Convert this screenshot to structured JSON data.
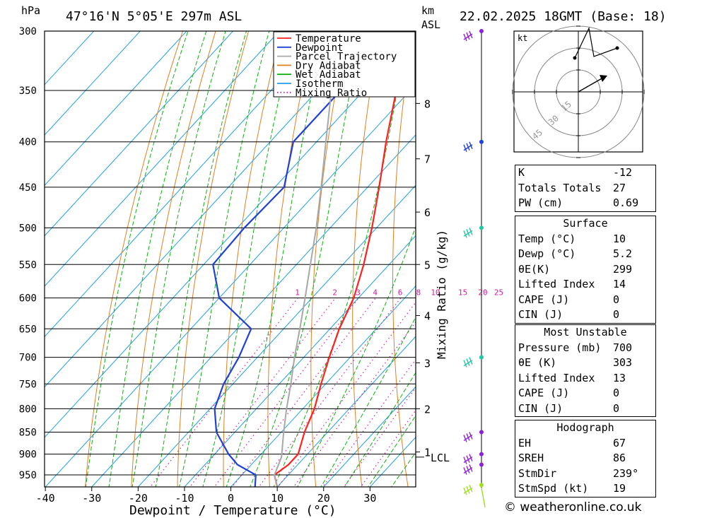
{
  "header": {
    "units_left": "hPa",
    "location": "47°16'N  5°05'E  297m  ASL",
    "units_km": "km",
    "units_asl": "ASL",
    "datetime": "22.02.2025  18GMT  (Base: 18)"
  },
  "chart_data": {
    "type": "line",
    "title": "47°16'N  5°05'E  297m  ASL",
    "xlabel": "Dewpoint / Temperature (°C)",
    "ylabel": "hPa",
    "right_axis_label": "Mixing Ratio (g/kg)",
    "xlim": [
      -40,
      40
    ],
    "ylim": [
      980,
      300
    ],
    "pressure_ticks": [
      300,
      350,
      400,
      450,
      500,
      550,
      600,
      650,
      700,
      750,
      800,
      850,
      900,
      950
    ],
    "temp_ticks": [
      -40,
      -30,
      -20,
      -10,
      0,
      10,
      20,
      30
    ],
    "km_ticks": [
      {
        "label": "1",
        "p": 895
      },
      {
        "label": "2",
        "p": 800
      },
      {
        "label": "3",
        "p": 710
      },
      {
        "label": "4",
        "p": 628
      },
      {
        "label": "5",
        "p": 550
      },
      {
        "label": "6",
        "p": 480
      },
      {
        "label": "7",
        "p": 418
      },
      {
        "label": "8",
        "p": 362
      }
    ],
    "lcl": {
      "label": "LCL",
      "p": 907
    },
    "mixing_ratio_labels": [
      "1",
      "2",
      "3",
      "4",
      "6",
      "8",
      "10",
      "15",
      "20",
      "25"
    ],
    "mixing_ratio_values": [
      1,
      2,
      3,
      4,
      6,
      8,
      10,
      15,
      20,
      25
    ],
    "mixing_ratio_label_p": 600,
    "legend": [
      "Temperature",
      "Dewpoint",
      "Parcel Trajectory",
      "Dry Adiabat",
      "Wet Adiabat",
      "Isotherm",
      "Mixing Ratio"
    ],
    "legend_position": "top-right",
    "series": [
      {
        "name": "Temperature",
        "color": "#ff2020",
        "points": [
          [
            980,
            10
          ],
          [
            950,
            7
          ],
          [
            925,
            8
          ],
          [
            900,
            8
          ],
          [
            850,
            5
          ],
          [
            800,
            2.5
          ],
          [
            750,
            -1
          ],
          [
            700,
            -4.5
          ],
          [
            650,
            -8
          ],
          [
            600,
            -11
          ],
          [
            550,
            -15.5
          ],
          [
            500,
            -21
          ],
          [
            450,
            -27.5
          ],
          [
            400,
            -35
          ],
          [
            350,
            -43
          ],
          [
            300,
            -51.5
          ]
        ]
      },
      {
        "name": "Dewpoint",
        "color": "#2040d8",
        "points": [
          [
            980,
            5.2
          ],
          [
            950,
            3
          ],
          [
            925,
            -3
          ],
          [
            900,
            -7
          ],
          [
            850,
            -14
          ],
          [
            800,
            -19
          ],
          [
            750,
            -22
          ],
          [
            700,
            -24
          ],
          [
            650,
            -27
          ],
          [
            600,
            -40
          ],
          [
            550,
            -48
          ],
          [
            500,
            -48.5
          ],
          [
            450,
            -48
          ],
          [
            400,
            -55
          ],
          [
            350,
            -55
          ],
          [
            300,
            -51.5
          ]
        ]
      },
      {
        "name": "Parcel Trajectory",
        "color": "#a8a8a8",
        "points": [
          [
            980,
            10
          ],
          [
            950,
            7
          ],
          [
            907,
            5
          ],
          [
            850,
            0.5
          ],
          [
            800,
            -3.5
          ],
          [
            750,
            -7.5
          ],
          [
            700,
            -12
          ],
          [
            650,
            -16.5
          ],
          [
            600,
            -21.5
          ],
          [
            550,
            -27
          ],
          [
            500,
            -33
          ],
          [
            450,
            -40
          ],
          [
            400,
            -48
          ],
          [
            350,
            -57
          ],
          [
            300,
            -67
          ]
        ]
      }
    ]
  },
  "wind_profile": {
    "markers": [
      {
        "p": 300,
        "color": "#9020d8"
      },
      {
        "p": 400,
        "color": "#2040d8"
      },
      {
        "p": 500,
        "color": "#20c8a8"
      },
      {
        "p": 700,
        "color": "#20c8a8"
      },
      {
        "p": 850,
        "color": "#9020d8"
      },
      {
        "p": 900,
        "color": "#9020d8"
      },
      {
        "p": 925,
        "color": "#9020d8"
      },
      {
        "p": 975,
        "color": "#a0e020"
      }
    ]
  },
  "hodograph": {
    "units": "kt",
    "rings": [
      "15",
      "30",
      "45"
    ],
    "path": [
      [
        -0.05,
        0.48
      ],
      [
        0.15,
        0.9
      ],
      [
        0.22,
        0.5
      ],
      [
        0.55,
        0.62
      ]
    ],
    "storm_motion": [
      0.35,
      0.2
    ]
  },
  "indices": {
    "top": [
      {
        "label": "K",
        "value": "-12"
      },
      {
        "label": "Totals Totals",
        "value": "27"
      },
      {
        "label": "PW (cm)",
        "value": "0.69"
      }
    ],
    "surface": {
      "title": "Surface",
      "rows": [
        {
          "label": "Temp (°C)",
          "value": "10"
        },
        {
          "label": "Dewp (°C)",
          "value": "5.2"
        },
        {
          "label": "θE(K)",
          "value": "299"
        },
        {
          "label": "Lifted Index",
          "value": "14"
        },
        {
          "label": "CAPE (J)",
          "value": "0"
        },
        {
          "label": "CIN (J)",
          "value": "0"
        }
      ]
    },
    "most_unstable": {
      "title": "Most Unstable",
      "rows": [
        {
          "label": "Pressure (mb)",
          "value": "700"
        },
        {
          "label": "θE (K)",
          "value": "303"
        },
        {
          "label": "Lifted Index",
          "value": "13"
        },
        {
          "label": "CAPE (J)",
          "value": "0"
        },
        {
          "label": "CIN (J)",
          "value": "0"
        }
      ]
    },
    "hodograph": {
      "title": "Hodograph",
      "rows": [
        {
          "label": "EH",
          "value": "67"
        },
        {
          "label": "SREH",
          "value": "86"
        },
        {
          "label": "StmDir",
          "value": "239°"
        },
        {
          "label": "StmSpd (kt)",
          "value": "19"
        }
      ]
    }
  },
  "footer": "© weatheronline.co.uk",
  "colors": {
    "temperature": "#ff2020",
    "dewpoint": "#2040d8",
    "parcel": "#a8a8a8",
    "dry_adiabat": "#e08020",
    "wet_adiabat": "#10b010",
    "isotherm": "#20a0e0",
    "mixing_ratio": "#d020a0"
  }
}
